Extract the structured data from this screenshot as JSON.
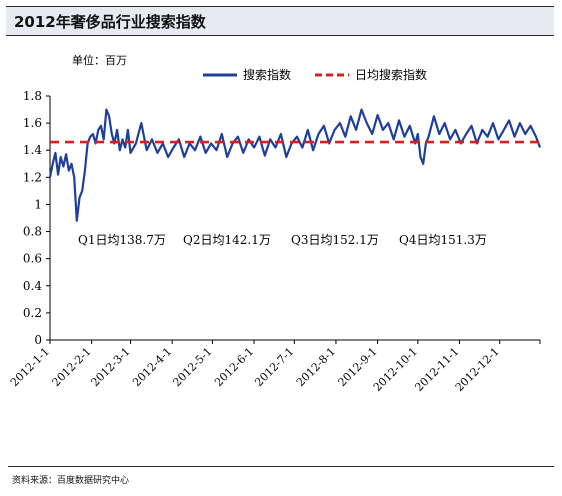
{
  "title": "2012年奢侈品行业搜索指数",
  "source": "资料来源：百度数据研究中心",
  "chart_data": {
    "type": "line",
    "unit_label": "单位：百万",
    "ylim": [
      0,
      1.8
    ],
    "yticks": [
      "0",
      "0.2",
      "0.4",
      "0.6",
      "0.8",
      "1",
      "1.2",
      "1.4",
      "1.6",
      "1.8"
    ],
    "x_tick_labels": [
      "2012-1-1",
      "2012-2-1",
      "2012-3-1",
      "2012-4-1",
      "2012-5-1",
      "2012-6-1",
      "2012-7-1",
      "2012-8-1",
      "2012-9-1",
      "2012-10-1",
      "2012-11-1",
      "2012-12-1"
    ],
    "x_range": [
      "2012-01-01",
      "2012-12-31"
    ],
    "grid": false,
    "legend_position": "top",
    "series": [
      {
        "name": "搜索指数",
        "color": "#1f3f99",
        "style": "solid",
        "x": [
          "2012-01-01",
          "2012-01-03",
          "2012-01-05",
          "2012-01-07",
          "2012-01-09",
          "2012-01-11",
          "2012-01-13",
          "2012-01-15",
          "2012-01-17",
          "2012-01-19",
          "2012-01-21",
          "2012-01-23",
          "2012-01-25",
          "2012-01-27",
          "2012-01-29",
          "2012-01-31",
          "2012-02-02",
          "2012-02-04",
          "2012-02-06",
          "2012-02-08",
          "2012-02-10",
          "2012-02-12",
          "2012-02-14",
          "2012-02-16",
          "2012-02-18",
          "2012-02-20",
          "2012-02-22",
          "2012-02-24",
          "2012-02-26",
          "2012-02-28",
          "2012-03-01",
          "2012-03-05",
          "2012-03-09",
          "2012-03-13",
          "2012-03-17",
          "2012-03-21",
          "2012-03-25",
          "2012-03-29",
          "2012-04-02",
          "2012-04-06",
          "2012-04-10",
          "2012-04-14",
          "2012-04-18",
          "2012-04-22",
          "2012-04-26",
          "2012-04-30",
          "2012-05-04",
          "2012-05-08",
          "2012-05-12",
          "2012-05-16",
          "2012-05-20",
          "2012-05-24",
          "2012-05-28",
          "2012-06-01",
          "2012-06-05",
          "2012-06-09",
          "2012-06-13",
          "2012-06-17",
          "2012-06-21",
          "2012-06-25",
          "2012-06-29",
          "2012-07-03",
          "2012-07-07",
          "2012-07-11",
          "2012-07-15",
          "2012-07-19",
          "2012-07-23",
          "2012-07-27",
          "2012-07-31",
          "2012-08-04",
          "2012-08-08",
          "2012-08-12",
          "2012-08-16",
          "2012-08-20",
          "2012-08-24",
          "2012-08-28",
          "2012-09-01",
          "2012-09-05",
          "2012-09-09",
          "2012-09-13",
          "2012-09-17",
          "2012-09-21",
          "2012-09-25",
          "2012-09-29",
          "2012-10-01",
          "2012-10-03",
          "2012-10-05",
          "2012-10-07",
          "2012-10-09",
          "2012-10-13",
          "2012-10-17",
          "2012-10-21",
          "2012-10-25",
          "2012-10-29",
          "2012-11-02",
          "2012-11-06",
          "2012-11-10",
          "2012-11-14",
          "2012-11-18",
          "2012-11-22",
          "2012-11-26",
          "2012-11-30",
          "2012-12-04",
          "2012-12-08",
          "2012-12-12",
          "2012-12-16",
          "2012-12-20",
          "2012-12-24",
          "2012-12-28",
          "2012-12-31"
        ],
        "values": [
          1.2,
          1.3,
          1.38,
          1.22,
          1.35,
          1.28,
          1.37,
          1.25,
          1.3,
          1.2,
          0.88,
          1.05,
          1.1,
          1.25,
          1.45,
          1.5,
          1.52,
          1.45,
          1.55,
          1.58,
          1.48,
          1.7,
          1.65,
          1.52,
          1.45,
          1.55,
          1.4,
          1.48,
          1.42,
          1.55,
          1.38,
          1.45,
          1.6,
          1.4,
          1.48,
          1.38,
          1.45,
          1.35,
          1.42,
          1.48,
          1.35,
          1.45,
          1.4,
          1.5,
          1.38,
          1.45,
          1.4,
          1.52,
          1.35,
          1.45,
          1.5,
          1.38,
          1.48,
          1.42,
          1.5,
          1.36,
          1.48,
          1.42,
          1.52,
          1.35,
          1.45,
          1.5,
          1.42,
          1.55,
          1.4,
          1.52,
          1.58,
          1.45,
          1.55,
          1.6,
          1.5,
          1.65,
          1.55,
          1.7,
          1.6,
          1.52,
          1.66,
          1.55,
          1.6,
          1.48,
          1.62,
          1.5,
          1.58,
          1.45,
          1.52,
          1.35,
          1.3,
          1.45,
          1.5,
          1.65,
          1.52,
          1.6,
          1.48,
          1.55,
          1.45,
          1.52,
          1.58,
          1.45,
          1.55,
          1.5,
          1.6,
          1.48,
          1.55,
          1.62,
          1.5,
          1.6,
          1.52,
          1.58,
          1.5,
          1.42
        ]
      },
      {
        "name": "日均搜索指数",
        "color": "#d62020",
        "style": "dashed",
        "values": [
          1.46
        ]
      }
    ],
    "annotations": [
      "Q1日均138.7万",
      "Q2日均142.1万",
      "Q3日均152.1万",
      "Q4日均151.3万"
    ]
  }
}
